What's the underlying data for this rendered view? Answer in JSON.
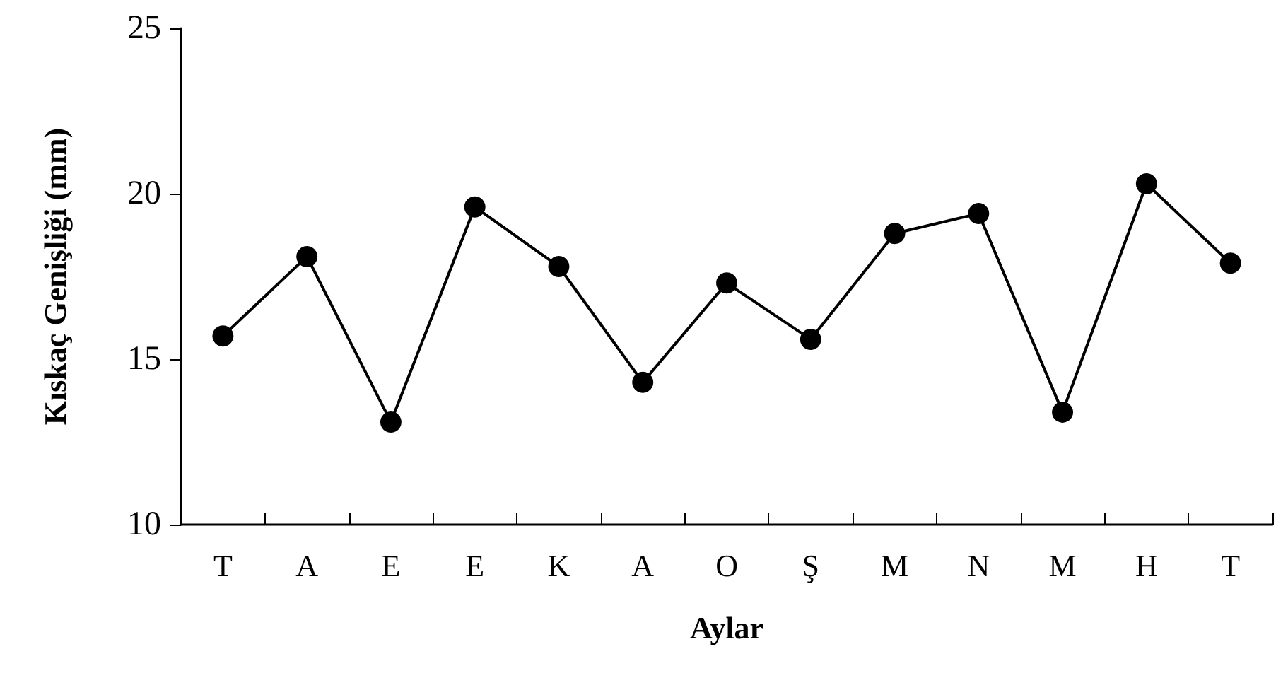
{
  "chart_data": {
    "type": "line",
    "xlabel": "Aylar",
    "ylabel": "Kıskaç Genişliği (mm)",
    "categories": [
      "T",
      "A",
      "E",
      "E",
      "K",
      "A",
      "O",
      "Ş",
      "M",
      "N",
      "M",
      "H",
      "T"
    ],
    "series": [
      {
        "color": "#000000",
        "values": [
          15.7,
          18.1,
          13.1,
          19.6,
          17.8,
          14.3,
          17.3,
          15.6,
          18.8,
          19.4,
          13.4,
          20.3,
          17.9
        ]
      }
    ],
    "ylim": [
      10,
      25
    ],
    "yticks": [
      10,
      15,
      20,
      25
    ],
    "grid": false,
    "marker": "circle",
    "line_style": "solid"
  }
}
